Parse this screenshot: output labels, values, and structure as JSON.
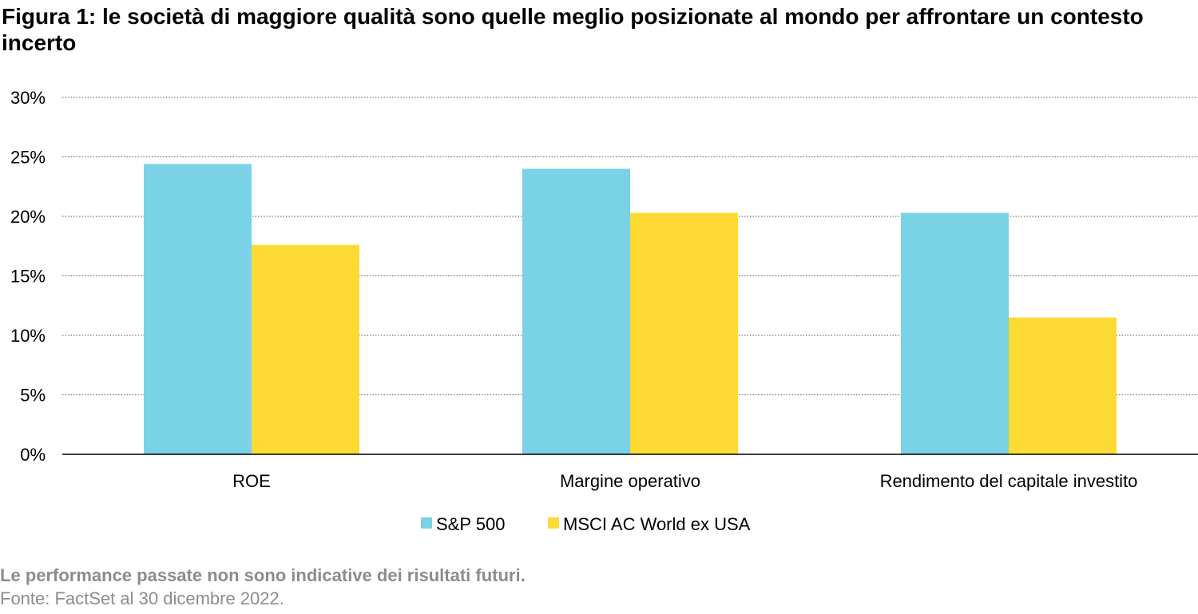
{
  "title": "Figura 1: le società di maggiore qualità sono quelle meglio posizionate al mondo per affrontare un contesto incerto",
  "chart_data": {
    "type": "bar",
    "title": "Figura 1: le società di maggiore qualità sono quelle meglio posizionate al mondo per affrontare un contesto incerto",
    "xlabel": "",
    "ylabel": "",
    "categories": [
      "ROE",
      "Margine operativo",
      "Rendimento del capitale investito"
    ],
    "series": [
      {
        "name": "S&P 500",
        "color": "#79d2e6",
        "values": [
          24.4,
          24.0,
          20.3
        ]
      },
      {
        "name": "MSCI AC World ex USA",
        "color": "#fddb34",
        "values": [
          17.6,
          20.3,
          11.5
        ]
      }
    ],
    "ylim": [
      0,
      30
    ],
    "yticks": [
      0,
      5,
      10,
      15,
      20,
      25,
      30
    ],
    "ytick_labels": [
      "0%",
      "5%",
      "10%",
      "15%",
      "20%",
      "25%",
      "30%"
    ],
    "grid": true,
    "legend_position": "bottom-center"
  },
  "footnote": {
    "disclaimer": "Le performance passate non sono indicative dei risultati futuri.",
    "source": "Fonte: FactSet al 30 dicembre 2022."
  }
}
